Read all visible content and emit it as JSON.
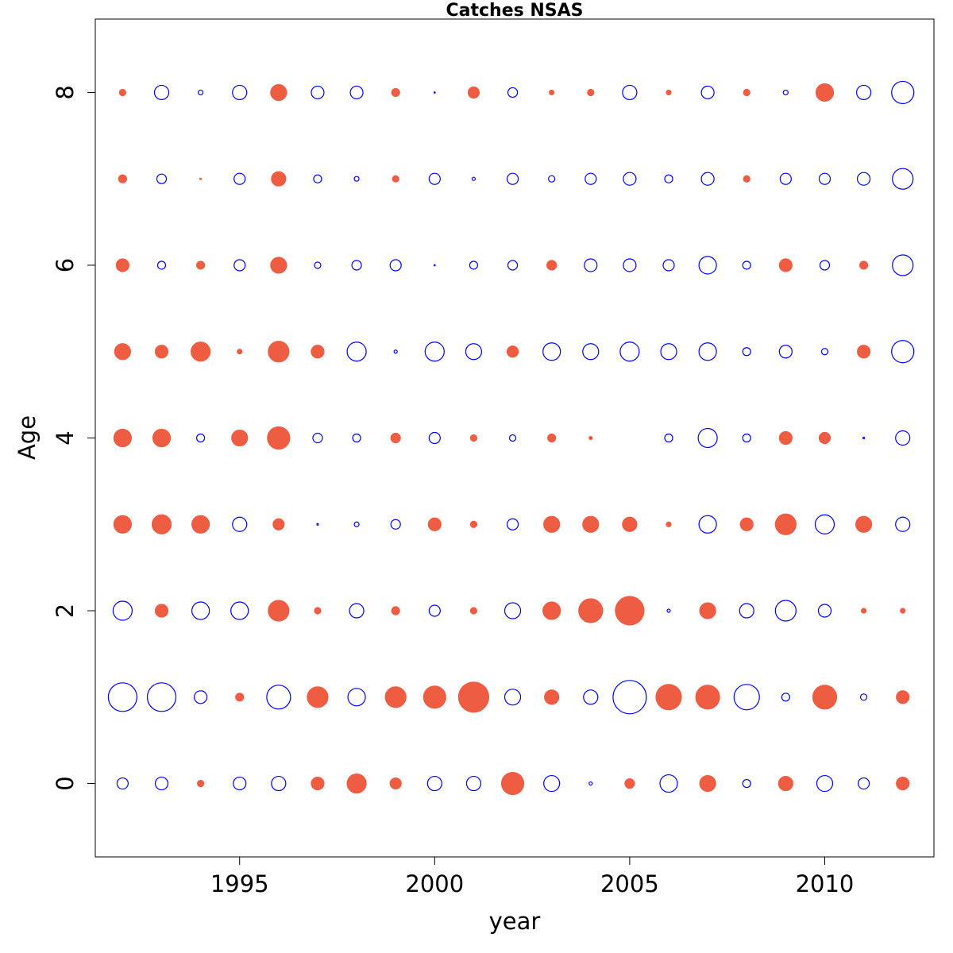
{
  "chart_data": {
    "type": "scatter",
    "subtype": "bubble",
    "title": "Catches NSAS",
    "xlabel": "year",
    "ylabel": "Age",
    "xlim": [
      1991.3,
      2012.8
    ],
    "ylim": [
      -0.85,
      8.85
    ],
    "x_ticks": [
      1995,
      2000,
      2005,
      2010
    ],
    "y_ticks": [
      0,
      2,
      4,
      6,
      8
    ],
    "grid": false,
    "legend": "none",
    "colors": {
      "positive": "#ee5c42",
      "negative": "#0000ff"
    },
    "value_scale": "bubble radius in px proportional to |value|; sign: 1 = filled red (positive residual), -1 = open blue (negative residual)",
    "years": [
      1992,
      1993,
      1994,
      1995,
      1996,
      1997,
      1998,
      1999,
      2000,
      2001,
      2002,
      2003,
      2004,
      2005,
      2006,
      2007,
      2008,
      2009,
      2010,
      2011,
      2012
    ],
    "ages": [
      0,
      1,
      2,
      3,
      4,
      5,
      6,
      7,
      8
    ],
    "sign": {
      "0": [
        -1,
        -1,
        1,
        -1,
        -1,
        1,
        1,
        1,
        -1,
        -1,
        1,
        -1,
        -1,
        1,
        -1,
        1,
        -1,
        1,
        -1,
        -1,
        1
      ],
      "1": [
        -1,
        -1,
        -1,
        1,
        -1,
        1,
        -1,
        1,
        1,
        1,
        -1,
        1,
        -1,
        -1,
        1,
        1,
        -1,
        -1,
        1,
        -1,
        1
      ],
      "2": [
        -1,
        1,
        -1,
        -1,
        1,
        1,
        -1,
        1,
        -1,
        1,
        -1,
        1,
        1,
        1,
        -1,
        1,
        -1,
        -1,
        -1,
        1,
        1
      ],
      "3": [
        1,
        1,
        1,
        -1,
        1,
        -1,
        -1,
        -1,
        1,
        1,
        -1,
        1,
        1,
        1,
        1,
        -1,
        1,
        1,
        -1,
        1,
        -1
      ],
      "4": [
        1,
        1,
        -1,
        1,
        1,
        -1,
        -1,
        1,
        -1,
        1,
        -1,
        1,
        1,
        1,
        -1,
        -1,
        -1,
        1,
        1,
        -1,
        -1
      ],
      "5": [
        1,
        1,
        1,
        1,
        1,
        1,
        -1,
        -1,
        -1,
        -1,
        1,
        -1,
        -1,
        -1,
        -1,
        -1,
        -1,
        -1,
        -1,
        1,
        -1
      ],
      "6": [
        1,
        -1,
        1,
        -1,
        1,
        -1,
        -1,
        -1,
        -1,
        -1,
        -1,
        1,
        -1,
        -1,
        -1,
        -1,
        -1,
        1,
        -1,
        1,
        -1
      ],
      "7": [
        1,
        -1,
        1,
        -1,
        1,
        -1,
        -1,
        1,
        -1,
        -1,
        -1,
        -1,
        -1,
        -1,
        -1,
        -1,
        1,
        -1,
        -1,
        -1,
        -1
      ],
      "8": [
        1,
        -1,
        -1,
        -1,
        1,
        -1,
        -1,
        1,
        -1,
        1,
        -1,
        1,
        1,
        -1,
        1,
        -1,
        1,
        -1,
        1,
        -1,
        -1
      ]
    },
    "magnitude": {
      "0": [
        7,
        8,
        4,
        8,
        9,
        8,
        12,
        7,
        9,
        9,
        14,
        10,
        2,
        6,
        11,
        10,
        5,
        9,
        10,
        7,
        8
      ],
      "1": [
        18,
        18,
        8,
        5,
        15,
        13,
        11,
        13,
        14,
        19,
        10,
        9,
        9,
        21,
        16,
        15,
        16,
        5,
        15,
        4,
        8
      ],
      "2": [
        12,
        8,
        11,
        11,
        13,
        4,
        9,
        5,
        7,
        4,
        10,
        11,
        15,
        18,
        2,
        10,
        9,
        13,
        8,
        3,
        3
      ],
      "3": [
        11,
        12,
        11,
        9,
        7,
        1,
        3,
        6,
        8,
        4,
        7,
        10,
        10,
        9,
        3,
        11,
        8,
        13,
        12,
        10,
        9
      ],
      "4": [
        11,
        11,
        5,
        10,
        14,
        6,
        5,
        6,
        7,
        4,
        4,
        5,
        2,
        0,
        5,
        12,
        5,
        8,
        7,
        1,
        9
      ],
      "5": [
        10,
        8,
        12,
        3,
        13,
        8,
        12,
        2,
        12,
        10,
        7,
        11,
        10,
        12,
        10,
        11,
        5,
        8,
        4,
        8,
        14
      ],
      "6": [
        8,
        5,
        5,
        7,
        10,
        4,
        6,
        7,
        0.7,
        5,
        6,
        6,
        8,
        8,
        7,
        11,
        5,
        8,
        6,
        5,
        13
      ],
      "7": [
        5,
        6,
        1,
        7,
        9,
        5,
        3,
        4,
        7,
        2,
        7,
        4,
        7,
        8,
        5,
        8,
        4,
        7,
        7,
        8,
        13
      ],
      "8": [
        4,
        9,
        3,
        9,
        10,
        8,
        8,
        5,
        0.7,
        7,
        6,
        3,
        4,
        9,
        3,
        8,
        4,
        3,
        11,
        9,
        14
      ]
    }
  }
}
